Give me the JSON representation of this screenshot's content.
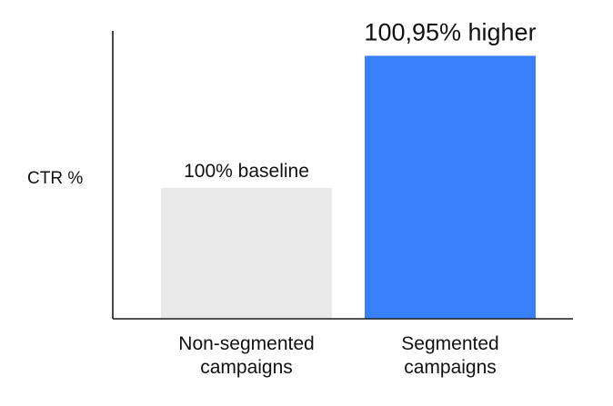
{
  "chart_data": {
    "type": "bar",
    "title": "",
    "xlabel": "",
    "ylabel": "CTR %",
    "categories": [
      [
        "Non-segmented",
        "campaigns"
      ],
      [
        "Segmented",
        "campaigns"
      ]
    ],
    "values": [
      100,
      200.95
    ],
    "data_labels": [
      "100% baseline",
      "100,95% higher"
    ],
    "ylim": [
      0,
      220
    ],
    "grid": false,
    "legend": "none",
    "colors": [
      "#e9e9e9",
      "#3880fb"
    ]
  }
}
